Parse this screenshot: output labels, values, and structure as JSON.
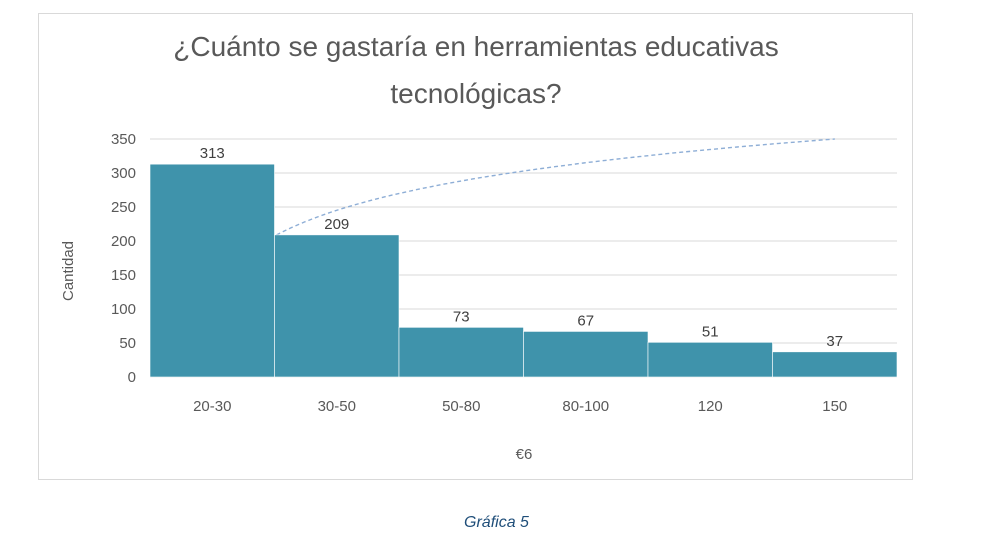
{
  "chart_data": {
    "type": "bar",
    "title_lines": [
      "¿Cuánto se gastaría en herramientas educativas",
      "tecnológicas?"
    ],
    "categories": [
      "20-30",
      "30-50",
      "50-80",
      "80-100",
      "120",
      "150"
    ],
    "values": [
      313,
      209,
      73,
      67,
      51,
      37
    ],
    "xlabel": "€6",
    "ylabel": "Cantidad",
    "ylim": [
      0,
      350
    ],
    "yticks": [
      0,
      50,
      100,
      150,
      200,
      250,
      300,
      350
    ],
    "grid": true,
    "bar_color": "#3f93ab",
    "trend_line_color": "#8eaed6"
  },
  "caption": "Gráfica 5"
}
